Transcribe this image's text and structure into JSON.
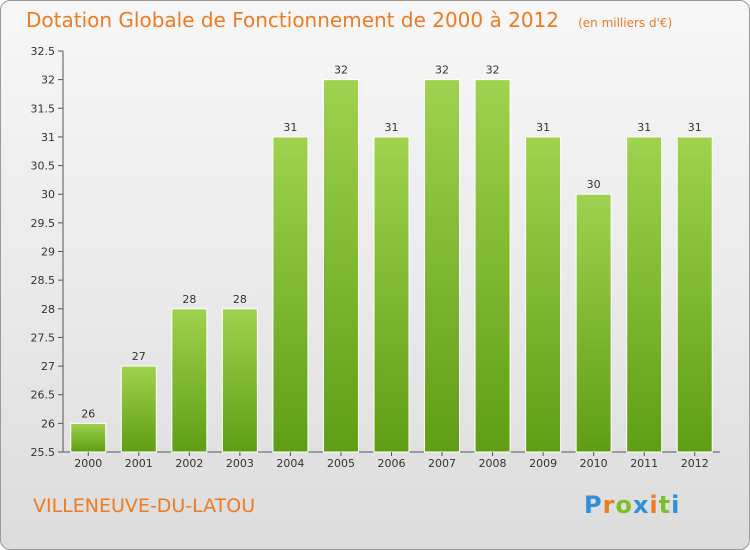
{
  "chart_data": {
    "type": "bar",
    "title": "Dotation Globale de Fonctionnement de 2000 à 2012",
    "unit": "(en milliers d'€)",
    "categories": [
      "2000",
      "2001",
      "2002",
      "2003",
      "2004",
      "2005",
      "2006",
      "2007",
      "2008",
      "2009",
      "2010",
      "2011",
      "2012"
    ],
    "values": [
      26,
      27,
      28,
      28,
      31,
      32,
      31,
      32,
      32,
      31,
      30,
      31,
      31
    ],
    "ylim": [
      25.5,
      32.5
    ],
    "yticks": [
      "25.5",
      "26",
      "26.5",
      "27",
      "27.5",
      "28",
      "28.5",
      "29",
      "29.5",
      "30",
      "30.5",
      "31",
      "31.5",
      "32",
      "32.5"
    ],
    "xlabel": "",
    "ylabel": "",
    "grid": false,
    "bar_color": "#7cbf2a"
  },
  "commune": "VILLENEUVE-DU-LATOU",
  "brand": {
    "text": "Proxiti",
    "letters": [
      "P",
      "r",
      "o",
      "x",
      "i",
      "t",
      "i"
    ],
    "colors": [
      "#2f8fd8",
      "#ee7a22",
      "#7cbf2a",
      "#2f8fd8",
      "#ee7a22",
      "#7cbf2a",
      "#2f8fd8"
    ]
  },
  "colors": {
    "accent": "#ee7a22"
  }
}
